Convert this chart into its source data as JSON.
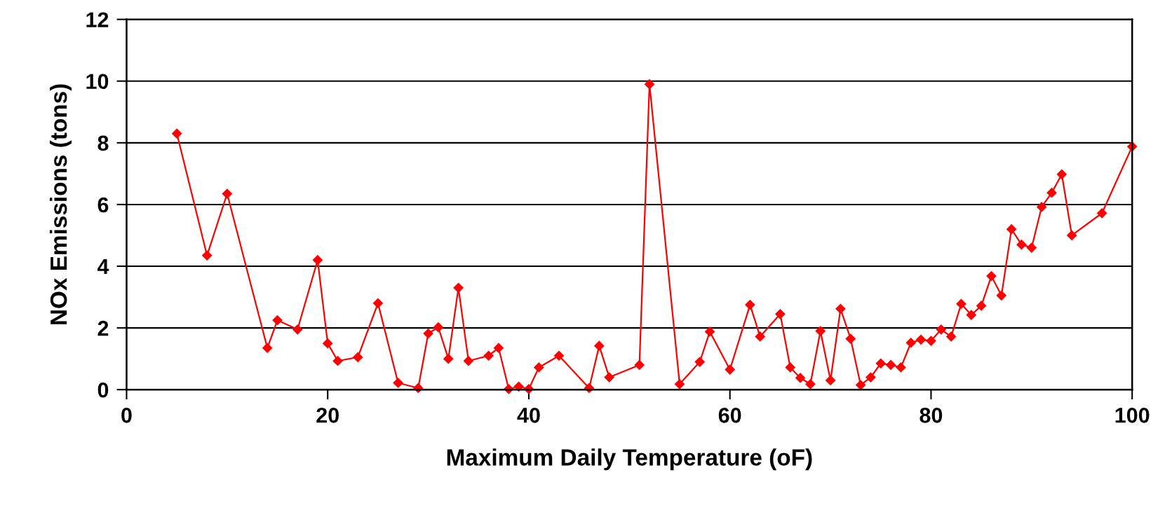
{
  "chart_data": {
    "type": "line",
    "xlabel": "Maximum Daily Temperature (oF)",
    "ylabel": "NOx Emissions (tons)",
    "xlim": [
      0,
      100
    ],
    "xticks": [
      0,
      20,
      40,
      60,
      80,
      100
    ],
    "ylim": [
      0,
      12
    ],
    "yticks": [
      0,
      2,
      4,
      6,
      8,
      10,
      12
    ],
    "grid": "y",
    "marker": "diamond",
    "line_style": "solid",
    "series": [
      {
        "color": "#ff0000",
        "x": [
          5,
          8,
          10,
          14,
          15,
          17,
          19,
          20,
          21,
          23,
          25,
          27,
          29,
          30,
          31,
          32,
          33,
          34,
          36,
          37,
          38,
          39,
          40,
          41,
          43,
          46,
          47,
          48,
          51,
          52,
          55,
          57,
          58,
          60,
          62,
          63,
          65,
          66,
          67,
          68,
          69,
          70,
          71,
          72,
          73,
          74,
          75,
          76,
          77,
          78,
          79,
          80,
          81,
          82,
          83,
          84,
          85,
          86,
          87,
          88,
          89,
          90,
          91,
          92,
          93,
          94,
          97,
          100
        ],
        "values": [
          8.3,
          4.35,
          6.35,
          1.35,
          2.25,
          1.95,
          4.2,
          1.5,
          0.93,
          1.05,
          2.8,
          0.22,
          0.05,
          1.82,
          2.02,
          1.0,
          3.3,
          0.93,
          1.1,
          1.35,
          0.02,
          0.1,
          0.02,
          0.72,
          1.1,
          0.05,
          1.42,
          0.4,
          0.8,
          9.9,
          0.18,
          0.9,
          1.88,
          0.65,
          2.75,
          1.72,
          2.45,
          0.72,
          0.38,
          0.18,
          1.9,
          0.3,
          2.62,
          1.65,
          0.15,
          0.4,
          0.85,
          0.8,
          0.72,
          1.52,
          1.62,
          1.58,
          1.95,
          1.72,
          2.78,
          2.42,
          2.72,
          3.68,
          3.05,
          5.2,
          4.7,
          4.6,
          5.92,
          6.38,
          6.98,
          5.0,
          5.72,
          7.88
        ]
      }
    ]
  }
}
